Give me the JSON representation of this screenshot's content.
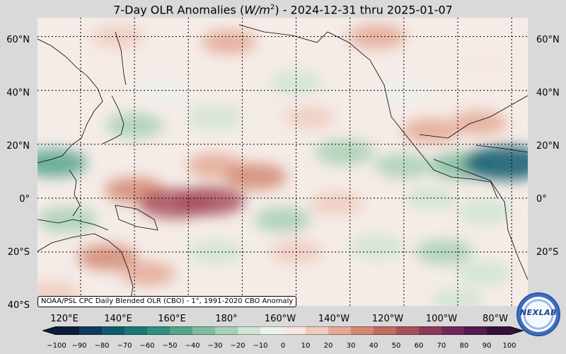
{
  "title": {
    "prefix": "7-Day OLR Anomalies (",
    "unit_base": "W/m",
    "unit_exp": "2",
    "suffix": ") - 2024-12-31 thru 2025-01-07"
  },
  "lat_labels": [
    "60°N",
    "40°N",
    "20°N",
    "0°",
    "20°S",
    "40°S"
  ],
  "lon_labels": [
    "120°E",
    "140°E",
    "160°E",
    "180°",
    "160°W",
    "140°W",
    "120°W",
    "100°W",
    "80°W"
  ],
  "credit": "NOAA/PSL CPC Daily Blended OLR (CBO) - 1°, 1991-2020 CBO Anomaly",
  "colorbar": {
    "ticks": [
      "−100",
      "−90",
      "−80",
      "−70",
      "−60",
      "−50",
      "−40",
      "−30",
      "−20",
      "−10",
      "0",
      "10",
      "20",
      "30",
      "40",
      "50",
      "60",
      "70",
      "80",
      "90",
      "100"
    ],
    "colors": [
      "#0b1d3a",
      "#0d3b5a",
      "#0f5a6e",
      "#1a7777",
      "#2f8f82",
      "#55a58e",
      "#80bb9f",
      "#a8d0b5",
      "#cfe4d3",
      "#ebf2ec",
      "#f7f5f3",
      "#f6e7e0",
      "#efcbbd",
      "#e4a995",
      "#d48873",
      "#c06a60",
      "#a84f5c",
      "#8d3a5c",
      "#70285a",
      "#521a4f",
      "#35103a"
    ]
  },
  "logo": {
    "text": "NEXLAB"
  },
  "map": {
    "lat_range": [
      -40,
      67
    ],
    "lon_range_east": [
      104,
      286
    ],
    "anomaly_patches": [
      {
        "lon": 134,
        "lat": 60,
        "v": 20
      },
      {
        "lon": 175,
        "lat": 58,
        "v": 25
      },
      {
        "lon": 230,
        "lat": 60,
        "v": 30
      },
      {
        "lon": 270,
        "lat": 50,
        "v": 10
      },
      {
        "lon": 150,
        "lat": 40,
        "v": -15
      },
      {
        "lon": 200,
        "lat": 43,
        "v": -20
      },
      {
        "lon": 240,
        "lat": 40,
        "v": -10
      },
      {
        "lon": 140,
        "lat": 27,
        "v": -30
      },
      {
        "lon": 170,
        "lat": 30,
        "v": -25
      },
      {
        "lon": 205,
        "lat": 30,
        "v": 15
      },
      {
        "lon": 250,
        "lat": 25,
        "v": 30
      },
      {
        "lon": 268,
        "lat": 28,
        "v": 25
      },
      {
        "lon": 110,
        "lat": 13,
        "v": -50
      },
      {
        "lon": 170,
        "lat": 12,
        "v": 30
      },
      {
        "lon": 185,
        "lat": 8,
        "v": 40
      },
      {
        "lon": 218,
        "lat": 17,
        "v": -35
      },
      {
        "lon": 240,
        "lat": 12,
        "v": -30
      },
      {
        "lon": 262,
        "lat": 12,
        "v": -45
      },
      {
        "lon": 278,
        "lat": 13,
        "v": -85
      },
      {
        "lon": 140,
        "lat": 3,
        "v": 35
      },
      {
        "lon": 155,
        "lat": -2,
        "v": 60
      },
      {
        "lon": 168,
        "lat": -1,
        "v": 55
      },
      {
        "lon": 195,
        "lat": -8,
        "v": -30
      },
      {
        "lon": 215,
        "lat": -2,
        "v": 20
      },
      {
        "lon": 250,
        "lat": 0,
        "v": -20
      },
      {
        "lon": 270,
        "lat": -5,
        "v": -25
      },
      {
        "lon": 115,
        "lat": -8,
        "v": -35
      },
      {
        "lon": 130,
        "lat": -22,
        "v": 35
      },
      {
        "lon": 145,
        "lat": -28,
        "v": 25
      },
      {
        "lon": 170,
        "lat": -20,
        "v": -25
      },
      {
        "lon": 200,
        "lat": -20,
        "v": 20
      },
      {
        "lon": 230,
        "lat": -18,
        "v": -25
      },
      {
        "lon": 255,
        "lat": -20,
        "v": -30
      },
      {
        "lon": 270,
        "lat": -28,
        "v": -25
      },
      {
        "lon": 110,
        "lat": -35,
        "v": 20
      },
      {
        "lon": 260,
        "lat": -38,
        "v": -20
      }
    ]
  }
}
